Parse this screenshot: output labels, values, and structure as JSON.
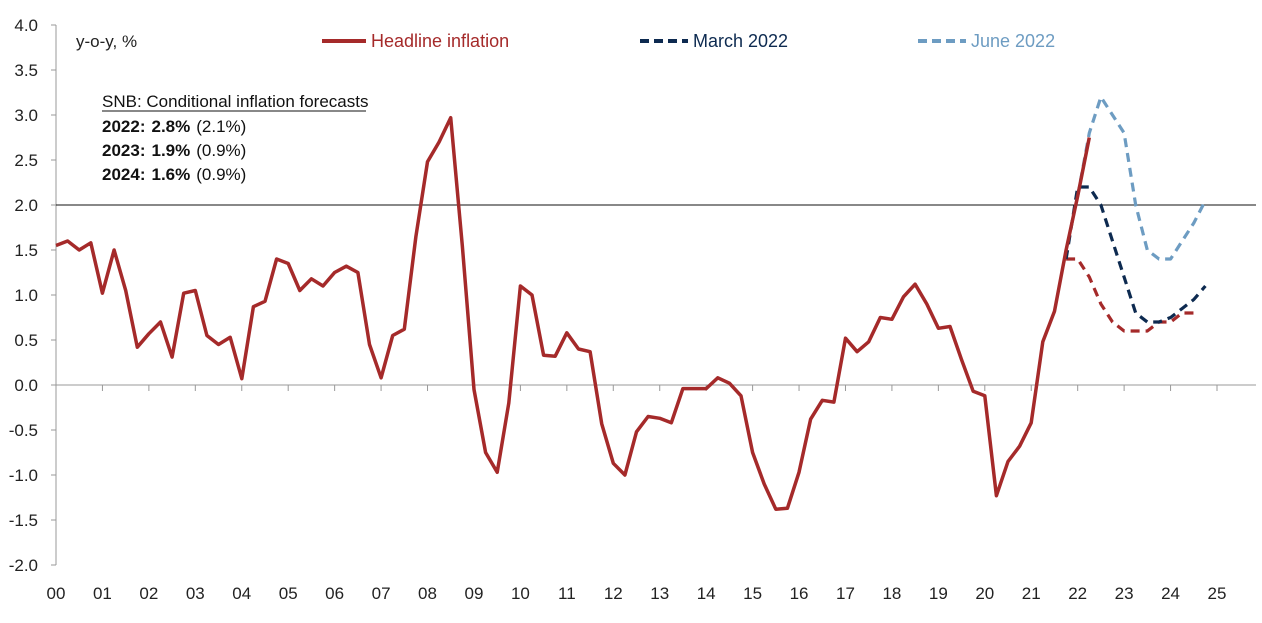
{
  "chart_data": {
    "type": "line",
    "ylabel": "y-o-y, %",
    "ylim": [
      -2.0,
      4.0
    ],
    "ytick_step": 0.5,
    "xlim": [
      2000,
      2025
    ],
    "x_ticks": [
      "00",
      "01",
      "02",
      "03",
      "04",
      "05",
      "06",
      "07",
      "08",
      "09",
      "10",
      "11",
      "12",
      "13",
      "14",
      "15",
      "16",
      "17",
      "18",
      "19",
      "20",
      "21",
      "22",
      "23",
      "24",
      "25"
    ],
    "reference_line": 2.0,
    "legend_position": "top",
    "series": [
      {
        "name": "Headline inflation",
        "color": "#a52a2a",
        "style": "solid",
        "x": [
          2000.0,
          2000.25,
          2000.5,
          2000.75,
          2001.0,
          2001.25,
          2001.5,
          2001.75,
          2002.0,
          2002.25,
          2002.5,
          2002.75,
          2003.0,
          2003.25,
          2003.5,
          2003.75,
          2004.0,
          2004.25,
          2004.5,
          2004.75,
          2005.0,
          2005.25,
          2005.5,
          2005.75,
          2006.0,
          2006.25,
          2006.5,
          2006.75,
          2007.0,
          2007.25,
          2007.5,
          2007.75,
          2008.0,
          2008.25,
          2008.5,
          2008.75,
          2009.0,
          2009.25,
          2009.5,
          2009.75,
          2010.0,
          2010.25,
          2010.5,
          2010.75,
          2011.0,
          2011.25,
          2011.5,
          2011.75,
          2012.0,
          2012.25,
          2012.5,
          2012.75,
          2013.0,
          2013.25,
          2013.5,
          2013.75,
          2014.0,
          2014.25,
          2014.5,
          2014.75,
          2015.0,
          2015.25,
          2015.5,
          2015.75,
          2016.0,
          2016.25,
          2016.5,
          2016.75,
          2017.0,
          2017.25,
          2017.5,
          2017.75,
          2018.0,
          2018.25,
          2018.5,
          2018.75,
          2019.0,
          2019.25,
          2019.5,
          2019.75,
          2020.0,
          2020.25,
          2020.5,
          2020.75,
          2021.0,
          2021.25,
          2021.5,
          2021.75,
          2022.0,
          2022.25
        ],
        "values": [
          1.55,
          1.6,
          1.5,
          1.58,
          1.02,
          1.5,
          1.05,
          0.42,
          0.57,
          0.7,
          0.31,
          1.02,
          1.05,
          0.55,
          0.45,
          0.53,
          0.07,
          0.87,
          0.93,
          1.4,
          1.35,
          1.05,
          1.18,
          1.1,
          1.25,
          1.32,
          1.25,
          0.45,
          0.08,
          0.55,
          0.62,
          1.65,
          2.48,
          2.7,
          2.97,
          1.55,
          -0.05,
          -0.75,
          -0.97,
          -0.2,
          1.1,
          1.0,
          0.33,
          0.32,
          0.58,
          0.4,
          0.37,
          -0.43,
          -0.87,
          -1.0,
          -0.52,
          -0.35,
          -0.37,
          -0.42,
          -0.04,
          -0.04,
          -0.04,
          0.08,
          0.02,
          -0.12,
          -0.75,
          -1.1,
          -1.38,
          -1.37,
          -0.97,
          -0.38,
          -0.17,
          -0.19,
          0.52,
          0.37,
          0.48,
          0.75,
          0.73,
          0.98,
          1.12,
          0.9,
          0.63,
          0.65,
          0.28,
          -0.07,
          -0.12,
          -1.23,
          -0.85,
          -0.68,
          -0.42,
          0.48,
          0.82,
          1.5,
          2.1,
          2.75
        ]
      },
      {
        "name": "",
        "color": "#a52a2a",
        "style": "dashed",
        "x": [
          2021.75,
          2022.0,
          2022.25,
          2022.5,
          2022.75,
          2023.0,
          2023.25,
          2023.5,
          2023.75,
          2024.0,
          2024.25,
          2024.5
        ],
        "values": [
          1.4,
          1.4,
          1.2,
          0.9,
          0.7,
          0.6,
          0.6,
          0.6,
          0.7,
          0.7,
          0.8,
          0.8
        ]
      },
      {
        "name": "March 2022",
        "color": "#0d2a50",
        "style": "dashed",
        "x": [
          2021.75,
          2022.0,
          2022.25,
          2022.5,
          2022.75,
          2023.0,
          2023.25,
          2023.5,
          2023.75,
          2024.0,
          2024.25,
          2024.5,
          2024.75
        ],
        "values": [
          1.4,
          2.2,
          2.2,
          2.0,
          1.6,
          1.2,
          0.8,
          0.7,
          0.7,
          0.75,
          0.85,
          0.95,
          1.1
        ]
      },
      {
        "name": "June 2022",
        "color": "#6d9cc2",
        "style": "dashed",
        "x": [
          2022.0,
          2022.25,
          2022.5,
          2022.75,
          2023.0,
          2023.25,
          2023.5,
          2023.75,
          2024.0,
          2024.25,
          2024.5,
          2024.75
        ],
        "values": [
          2.1,
          2.8,
          3.2,
          3.0,
          2.8,
          2.0,
          1.5,
          1.4,
          1.4,
          1.6,
          1.8,
          2.05
        ]
      }
    ]
  },
  "legend": {
    "headline": "Headline inflation",
    "march": "March 2022",
    "june": "June 2022"
  },
  "forecast_box": {
    "title": "SNB: Conditional inflation forecasts",
    "rows": [
      {
        "year": "2022:",
        "value": "2.8%",
        "prev": "(2.1%)"
      },
      {
        "year": "2023:",
        "value": "1.9%",
        "prev": "(0.9%)"
      },
      {
        "year": "2024:",
        "value": "1.6%",
        "prev": "(0.9%)"
      }
    ]
  }
}
